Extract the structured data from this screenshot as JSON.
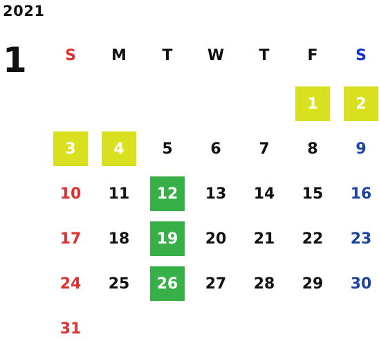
{
  "year": "2021",
  "month": "1",
  "weekdays": [
    "S",
    "M",
    "T",
    "W",
    "T",
    "F",
    "S"
  ],
  "colors": {
    "sunday": "#e03030",
    "saturday": "#1c44a0",
    "holiday_highlight": "#d8e020",
    "event_highlight": "#38b048"
  },
  "weeks": [
    [
      "",
      "",
      "",
      "",
      "",
      "1",
      "2"
    ],
    [
      "3",
      "4",
      "5",
      "6",
      "7",
      "8",
      "9"
    ],
    [
      "10",
      "11",
      "12",
      "13",
      "14",
      "15",
      "16"
    ],
    [
      "17",
      "18",
      "19",
      "20",
      "21",
      "22",
      "23"
    ],
    [
      "24",
      "25",
      "26",
      "27",
      "28",
      "29",
      "30"
    ],
    [
      "31",
      "",
      "",
      "",
      "",
      "",
      ""
    ]
  ],
  "highlights": {
    "holiday": [
      "1",
      "2",
      "3",
      "4"
    ],
    "event": [
      "12",
      "19",
      "26"
    ]
  }
}
